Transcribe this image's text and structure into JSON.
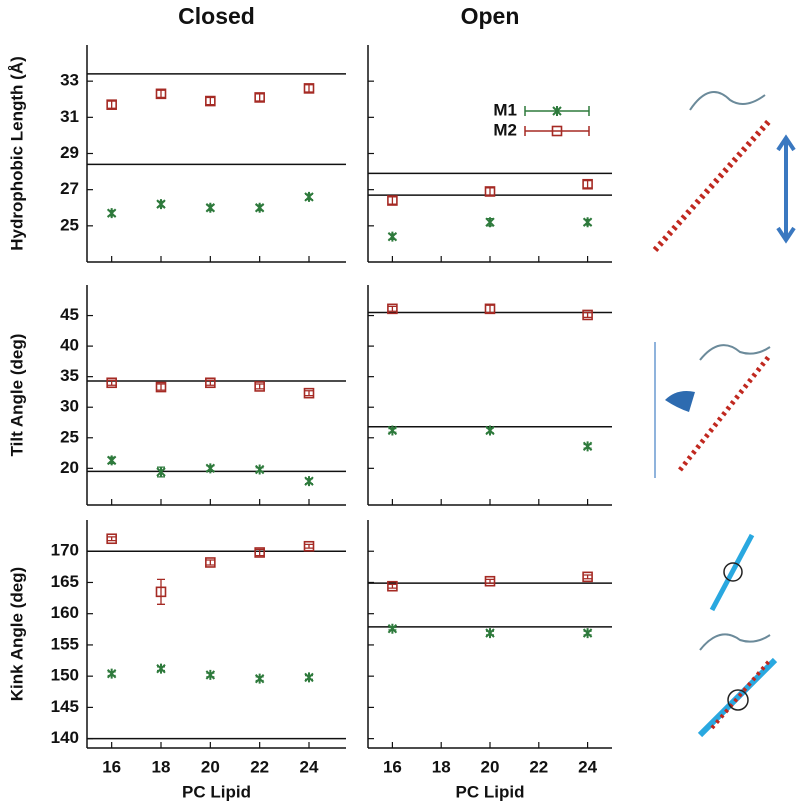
{
  "chart_data": [
    {
      "type": "scatter",
      "title": "Closed",
      "ylabel": "Hydrophobic Length (Å)",
      "x": [
        16,
        18,
        20,
        22,
        24
      ],
      "xlim": [
        15,
        25.5
      ],
      "xticks": [
        16,
        18,
        20,
        22,
        24
      ],
      "xtick_labels": false,
      "ylim": [
        23,
        35
      ],
      "yticks": [
        25,
        27,
        29,
        31,
        33
      ],
      "ytick_labels": true,
      "hlines": [
        33.4,
        28.4
      ],
      "series": [
        {
          "color": "#2e7a3c",
          "marker": "asterisk",
          "values": [
            25.7,
            26.2,
            26.0,
            26.0,
            26.6
          ],
          "errors": [
            0.15,
            0.15,
            0.15,
            0.15,
            0.15
          ]
        },
        {
          "color": "#a52a24",
          "marker": "square",
          "values": [
            31.7,
            32.3,
            31.9,
            32.1,
            32.6
          ],
          "errors": [
            0.2,
            0.2,
            0.2,
            0.2,
            0.2
          ]
        }
      ]
    },
    {
      "type": "scatter",
      "title": "Open",
      "x": [
        16,
        20,
        24
      ],
      "xlim": [
        15,
        25
      ],
      "xticks": [
        16,
        18,
        20,
        22,
        24
      ],
      "xtick_labels": false,
      "ylim": [
        23,
        35
      ],
      "yticks": [
        25,
        27,
        29,
        31,
        33
      ],
      "ytick_labels": false,
      "hlines": [
        27.9,
        26.7
      ],
      "legend": "upper right",
      "series": [
        {
          "name": "M1",
          "color": "#2e7a3c",
          "marker": "asterisk",
          "values": [
            24.4,
            25.2,
            25.2
          ],
          "errors": [
            0.15,
            0.2,
            0.15
          ]
        },
        {
          "name": "M2",
          "color": "#a52a24",
          "marker": "square",
          "values": [
            26.4,
            26.9,
            27.3
          ],
          "errors": [
            0.2,
            0.2,
            0.2
          ]
        }
      ]
    },
    {
      "type": "scatter",
      "ylabel": "Tilt Angle (deg)",
      "x": [
        16,
        18,
        20,
        22,
        24
      ],
      "xlim": [
        15,
        25.5
      ],
      "xticks": [
        16,
        18,
        20,
        22,
        24
      ],
      "xtick_labels": false,
      "ylim": [
        14,
        50
      ],
      "yticks": [
        20,
        25,
        30,
        35,
        40,
        45
      ],
      "ytick_labels": true,
      "hlines": [
        34.3,
        19.5
      ],
      "series": [
        {
          "color": "#2e7a3c",
          "marker": "asterisk",
          "values": [
            21.3,
            19.4,
            20.0,
            19.8,
            17.9
          ],
          "errors": [
            0.5,
            0.8,
            0.4,
            0.3,
            0.4
          ]
        },
        {
          "color": "#a52a24",
          "marker": "square",
          "values": [
            34.0,
            33.3,
            34.0,
            33.4,
            32.3
          ],
          "errors": [
            0.4,
            0.5,
            0.4,
            0.4,
            0.4
          ]
        }
      ]
    },
    {
      "type": "scatter",
      "x": [
        16,
        20,
        24
      ],
      "xlim": [
        15,
        25
      ],
      "xticks": [
        16,
        18,
        20,
        22,
        24
      ],
      "xtick_labels": false,
      "ylim": [
        14,
        50
      ],
      "yticks": [
        20,
        25,
        30,
        35,
        40,
        45
      ],
      "ytick_labels": false,
      "hlines": [
        45.5,
        26.8
      ],
      "series": [
        {
          "color": "#2e7a3c",
          "marker": "asterisk",
          "values": [
            26.2,
            26.2,
            23.6
          ],
          "errors": [
            0.3,
            0.4,
            0.3
          ]
        },
        {
          "color": "#a52a24",
          "marker": "square",
          "values": [
            46.1,
            46.1,
            45.1
          ],
          "errors": [
            0.4,
            0.6,
            0.4
          ]
        }
      ]
    },
    {
      "type": "scatter",
      "ylabel": "Kink Angle (deg)",
      "xlabel": "PC Lipid",
      "x": [
        16,
        18,
        20,
        22,
        24
      ],
      "xlim": [
        15,
        25.5
      ],
      "xticks": [
        16,
        18,
        20,
        22,
        24
      ],
      "xtick_labels": true,
      "ylim": [
        138.5,
        175
      ],
      "yticks": [
        140,
        145,
        150,
        155,
        160,
        165,
        170
      ],
      "ytick_labels": true,
      "hlines": [
        170,
        140
      ],
      "series": [
        {
          "color": "#2e7a3c",
          "marker": "asterisk",
          "values": [
            150.4,
            151.2,
            150.2,
            149.6,
            149.8
          ],
          "errors": [
            0.3,
            0.3,
            0.3,
            0.3,
            0.3
          ]
        },
        {
          "color": "#a52a24",
          "marker": "square",
          "values": [
            172.0,
            163.5,
            168.2,
            169.8,
            170.8
          ],
          "errors": [
            0.3,
            2.0,
            0.4,
            0.5,
            0.3
          ]
        }
      ]
    },
    {
      "type": "scatter",
      "xlabel": "PC Lipid",
      "x": [
        16,
        20,
        24
      ],
      "xlim": [
        15,
        25
      ],
      "xticks": [
        16,
        18,
        20,
        22,
        24
      ],
      "xtick_labels": true,
      "ylim": [
        138.5,
        175
      ],
      "yticks": [
        140,
        145,
        150,
        155,
        160,
        165,
        170
      ],
      "ytick_labels": false,
      "hlines": [
        164.9,
        157.9
      ],
      "series": [
        {
          "color": "#2e7a3c",
          "marker": "asterisk",
          "values": [
            157.6,
            156.9,
            156.9
          ],
          "errors": [
            0.2,
            0.3,
            0.3
          ]
        },
        {
          "color": "#a52a24",
          "marker": "square",
          "values": [
            164.4,
            165.2,
            165.9
          ],
          "errors": [
            0.3,
            0.3,
            0.3
          ]
        }
      ]
    }
  ]
}
